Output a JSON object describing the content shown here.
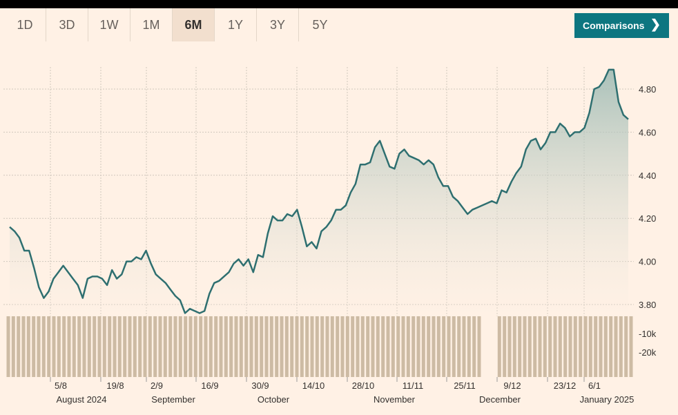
{
  "tabs": [
    {
      "label": "1D",
      "active": false
    },
    {
      "label": "3D",
      "active": false
    },
    {
      "label": "1W",
      "active": false
    },
    {
      "label": "1M",
      "active": false
    },
    {
      "label": "6M",
      "active": true
    },
    {
      "label": "1Y",
      "active": false
    },
    {
      "label": "3Y",
      "active": false
    },
    {
      "label": "5Y",
      "active": false
    }
  ],
  "comparisons_button": {
    "label": "Comparisons",
    "icon": "chevron-right-icon"
  },
  "colors": {
    "line": "#2e6f70",
    "area_top": "#9bb9b2",
    "volume": "#cdbba4",
    "grid": "#cfc6bc",
    "button": "#0d7680",
    "background": "#fff1e5"
  },
  "chart_data": {
    "type": "area",
    "price_axis": {
      "ticks": [
        "3.80",
        "4.00",
        "4.20",
        "4.40",
        "4.60",
        "4.80"
      ],
      "ylim": [
        3.7,
        4.95
      ]
    },
    "volume_axis": {
      "ticks": [
        "-10k",
        "-20k"
      ]
    },
    "x_tick_labels": [
      "5/8",
      "19/8",
      "2/9",
      "16/9",
      "30/9",
      "14/10",
      "28/10",
      "11/11",
      "25/11",
      "9/12",
      "23/12",
      "6/1"
    ],
    "month_labels": [
      "August 2024",
      "September",
      "October",
      "November",
      "December",
      "January 2025"
    ],
    "volume_gap_index": [
      94,
      96
    ],
    "series": [
      {
        "values": [
          4.16,
          4.14,
          4.11,
          4.05,
          4.05,
          3.97,
          3.88,
          3.83,
          3.86,
          3.92,
          3.95,
          3.98,
          3.95,
          3.92,
          3.89,
          3.83,
          3.92,
          3.93,
          3.93,
          3.92,
          3.89,
          3.96,
          3.92,
          3.94,
          4.0,
          4.0,
          4.02,
          4.01,
          4.05,
          3.99,
          3.94,
          3.92,
          3.9,
          3.87,
          3.84,
          3.82,
          3.76,
          3.78,
          3.77,
          3.76,
          3.77,
          3.85,
          3.9,
          3.91,
          3.93,
          3.95,
          3.99,
          4.01,
          3.98,
          4.01,
          3.95,
          4.03,
          4.02,
          4.13,
          4.21,
          4.19,
          4.19,
          4.22,
          4.21,
          4.24,
          4.16,
          4.07,
          4.09,
          4.06,
          4.14,
          4.16,
          4.19,
          4.24,
          4.24,
          4.26,
          4.32,
          4.36,
          4.45,
          4.45,
          4.46,
          4.53,
          4.56,
          4.5,
          4.44,
          4.43,
          4.5,
          4.52,
          4.49,
          4.48,
          4.47,
          4.45,
          4.47,
          4.45,
          4.39,
          4.35,
          4.35,
          4.3,
          4.28,
          4.25,
          4.22,
          4.24,
          4.25,
          4.26,
          4.27,
          4.28,
          4.27,
          4.33,
          4.32,
          4.37,
          4.41,
          4.44,
          4.52,
          4.56,
          4.57,
          4.52,
          4.55,
          4.6,
          4.6,
          4.64,
          4.62,
          4.58,
          4.6,
          4.6,
          4.62,
          4.69,
          4.8,
          4.81,
          4.84,
          4.89,
          4.89,
          4.74,
          4.68,
          4.66
        ]
      }
    ]
  }
}
